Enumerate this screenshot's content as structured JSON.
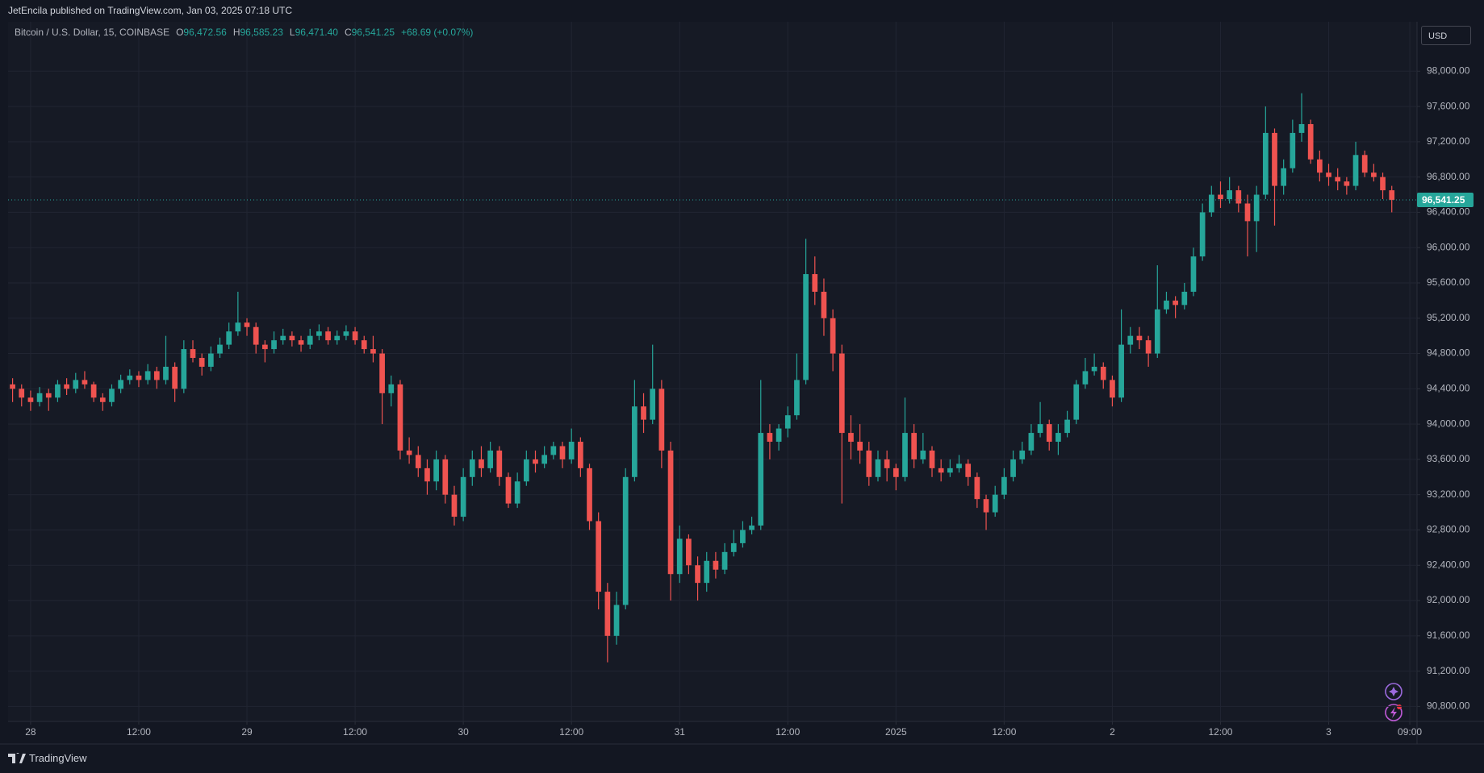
{
  "header": {
    "publisher": "JetEncila published on TradingView.com, Jan 03, 2025 07:18 UTC"
  },
  "footer": {
    "brand": "TradingView"
  },
  "legend": {
    "symbol": "Bitcoin / U.S. Dollar, 15, COINBASE",
    "fields": [
      {
        "key": "O",
        "value": "96,472.56"
      },
      {
        "key": "H",
        "value": "96,585.23"
      },
      {
        "key": "L",
        "value": "96,471.40"
      },
      {
        "key": "C",
        "value": "96,541.25"
      }
    ],
    "change": "+68.69 (+0.07%)"
  },
  "currency": "USD",
  "chart_data": {
    "type": "candlestick",
    "up_color": "#26a69a",
    "down_color": "#ef5350",
    "grid": true,
    "last_price": {
      "value": 96541.25,
      "label": "96,541.25"
    },
    "xlim": [
      -0.5,
      155.8
    ],
    "xticks": [
      {
        "value": 2,
        "label": "28"
      },
      {
        "value": 14,
        "label": "12:00"
      },
      {
        "value": 26,
        "label": "29"
      },
      {
        "value": 38,
        "label": "12:00"
      },
      {
        "value": 50,
        "label": "30"
      },
      {
        "value": 62,
        "label": "12:00"
      },
      {
        "value": 74,
        "label": "31"
      },
      {
        "value": 86,
        "label": "12:00"
      },
      {
        "value": 98,
        "label": "2025"
      },
      {
        "value": 110,
        "label": "12:00"
      },
      {
        "value": 122,
        "label": "2"
      },
      {
        "value": 134,
        "label": "12:00"
      },
      {
        "value": 146,
        "label": "3"
      },
      {
        "value": 155,
        "label": "09:00"
      }
    ],
    "ylim": [
      90630,
      98560
    ],
    "yticks": [
      {
        "value": 90800,
        "label": "90,800.00"
      },
      {
        "value": 91200,
        "label": "91,200.00"
      },
      {
        "value": 91600,
        "label": "91,600.00"
      },
      {
        "value": 92000,
        "label": "92,000.00"
      },
      {
        "value": 92400,
        "label": "92,400.00"
      },
      {
        "value": 92800,
        "label": "92,800.00"
      },
      {
        "value": 93200,
        "label": "93,200.00"
      },
      {
        "value": 93600,
        "label": "93,600.00"
      },
      {
        "value": 94000,
        "label": "94,000.00"
      },
      {
        "value": 94400,
        "label": "94,400.00"
      },
      {
        "value": 94800,
        "label": "94,800.00"
      },
      {
        "value": 95200,
        "label": "95,200.00"
      },
      {
        "value": 95600,
        "label": "95,600.00"
      },
      {
        "value": 96000,
        "label": "96,000.00"
      },
      {
        "value": 96400,
        "label": "96,400.00"
      },
      {
        "value": 96800,
        "label": "96,800.00"
      },
      {
        "value": 97200,
        "label": "97,200.00"
      },
      {
        "value": 97600,
        "label": "97,600.00"
      },
      {
        "value": 98000,
        "label": "98,000.00"
      }
    ],
    "ohlc": [
      [
        94450,
        94520,
        94250,
        94400
      ],
      [
        94400,
        94450,
        94200,
        94300
      ],
      [
        94300,
        94380,
        94150,
        94250
      ],
      [
        94250,
        94420,
        94200,
        94350
      ],
      [
        94350,
        94400,
        94150,
        94300
      ],
      [
        94300,
        94500,
        94250,
        94450
      ],
      [
        94450,
        94520,
        94330,
        94400
      ],
      [
        94400,
        94580,
        94350,
        94500
      ],
      [
        94500,
        94600,
        94400,
        94450
      ],
      [
        94450,
        94480,
        94250,
        94300
      ],
      [
        94300,
        94350,
        94150,
        94250
      ],
      [
        94250,
        94450,
        94200,
        94400
      ],
      [
        94400,
        94560,
        94350,
        94500
      ],
      [
        94500,
        94620,
        94450,
        94550
      ],
      [
        94550,
        94600,
        94420,
        94500
      ],
      [
        94500,
        94680,
        94450,
        94600
      ],
      [
        94600,
        94650,
        94400,
        94500
      ],
      [
        94500,
        95000,
        94450,
        94650
      ],
      [
        94650,
        94700,
        94250,
        94400
      ],
      [
        94400,
        94950,
        94350,
        94850
      ],
      [
        94850,
        94950,
        94700,
        94750
      ],
      [
        94750,
        94800,
        94550,
        94650
      ],
      [
        94650,
        94880,
        94600,
        94800
      ],
      [
        94800,
        94980,
        94750,
        94900
      ],
      [
        94900,
        95150,
        94850,
        95050
      ],
      [
        95050,
        95500,
        95000,
        95150
      ],
      [
        95150,
        95200,
        95000,
        95100
      ],
      [
        95100,
        95150,
        94800,
        94900
      ],
      [
        94900,
        94950,
        94700,
        94850
      ],
      [
        94850,
        95050,
        94800,
        94950
      ],
      [
        94950,
        95080,
        94900,
        95000
      ],
      [
        95000,
        95050,
        94880,
        94950
      ],
      [
        94950,
        95000,
        94820,
        94900
      ],
      [
        94900,
        95080,
        94850,
        95000
      ],
      [
        95000,
        95130,
        94950,
        95050
      ],
      [
        95050,
        95100,
        94900,
        94950
      ],
      [
        94950,
        95060,
        94900,
        95000
      ],
      [
        95000,
        95120,
        94950,
        95050
      ],
      [
        95050,
        95100,
        94900,
        94950
      ],
      [
        94950,
        95000,
        94800,
        94850
      ],
      [
        94850,
        95000,
        94700,
        94800
      ],
      [
        94800,
        94850,
        94000,
        94350
      ],
      [
        94350,
        94550,
        94200,
        94450
      ],
      [
        94450,
        94500,
        93600,
        93700
      ],
      [
        93700,
        93850,
        93550,
        93650
      ],
      [
        93650,
        93750,
        93400,
        93500
      ],
      [
        93500,
        93600,
        93200,
        93350
      ],
      [
        93350,
        93700,
        93250,
        93600
      ],
      [
        93600,
        93650,
        93100,
        93200
      ],
      [
        93200,
        93300,
        92850,
        92950
      ],
      [
        92950,
        93500,
        92900,
        93400
      ],
      [
        93400,
        93700,
        93300,
        93600
      ],
      [
        93600,
        93750,
        93400,
        93500
      ],
      [
        93500,
        93800,
        93450,
        93700
      ],
      [
        93700,
        93750,
        93300,
        93400
      ],
      [
        93400,
        93450,
        93050,
        93100
      ],
      [
        93100,
        93450,
        93050,
        93350
      ],
      [
        93350,
        93700,
        93300,
        93600
      ],
      [
        93600,
        93700,
        93450,
        93550
      ],
      [
        93550,
        93750,
        93500,
        93650
      ],
      [
        93650,
        93800,
        93600,
        93750
      ],
      [
        93750,
        93800,
        93500,
        93600
      ],
      [
        93600,
        93950,
        93550,
        93800
      ],
      [
        93800,
        93850,
        93400,
        93500
      ],
      [
        93500,
        93550,
        92800,
        92900
      ],
      [
        92900,
        93000,
        91900,
        92100
      ],
      [
        92100,
        92200,
        91300,
        91600
      ],
      [
        91600,
        92100,
        91500,
        91950
      ],
      [
        91950,
        93500,
        91900,
        93400
      ],
      [
        93400,
        94500,
        93350,
        94200
      ],
      [
        94200,
        94350,
        93900,
        94050
      ],
      [
        94050,
        94900,
        94000,
        94400
      ],
      [
        94400,
        94500,
        93500,
        93700
      ],
      [
        93700,
        93800,
        92000,
        92300
      ],
      [
        92300,
        92850,
        92200,
        92700
      ],
      [
        92700,
        92750,
        92300,
        92400
      ],
      [
        92400,
        92500,
        92000,
        92200
      ],
      [
        92200,
        92550,
        92100,
        92450
      ],
      [
        92450,
        92550,
        92250,
        92350
      ],
      [
        92350,
        92650,
        92300,
        92550
      ],
      [
        92550,
        92800,
        92500,
        92650
      ],
      [
        92650,
        92900,
        92600,
        92800
      ],
      [
        92800,
        92950,
        92750,
        92850
      ],
      [
        92850,
        94500,
        92800,
        93900
      ],
      [
        93900,
        94000,
        93600,
        93800
      ],
      [
        93800,
        94000,
        93700,
        93950
      ],
      [
        93950,
        94200,
        93850,
        94100
      ],
      [
        94100,
        94800,
        94050,
        94500
      ],
      [
        94500,
        96100,
        94450,
        95700
      ],
      [
        95700,
        95900,
        95350,
        95500
      ],
      [
        95500,
        95650,
        95000,
        95200
      ],
      [
        95200,
        95300,
        94600,
        94800
      ],
      [
        94800,
        94900,
        93100,
        93900
      ],
      [
        93900,
        94100,
        93600,
        93800
      ],
      [
        93800,
        94000,
        93550,
        93700
      ],
      [
        93700,
        93800,
        93300,
        93400
      ],
      [
        93400,
        93700,
        93350,
        93600
      ],
      [
        93600,
        93700,
        93350,
        93500
      ],
      [
        93500,
        93550,
        93250,
        93400
      ],
      [
        93400,
        94300,
        93350,
        93900
      ],
      [
        93900,
        94000,
        93500,
        93600
      ],
      [
        93600,
        93900,
        93550,
        93700
      ],
      [
        93700,
        93750,
        93400,
        93500
      ],
      [
        93500,
        93600,
        93350,
        93450
      ],
      [
        93450,
        93600,
        93400,
        93500
      ],
      [
        93500,
        93650,
        93450,
        93550
      ],
      [
        93550,
        93600,
        93300,
        93400
      ],
      [
        93400,
        93450,
        93050,
        93150
      ],
      [
        93150,
        93200,
        92800,
        93000
      ],
      [
        93000,
        93300,
        92950,
        93200
      ],
      [
        93200,
        93500,
        93150,
        93400
      ],
      [
        93400,
        93700,
        93350,
        93600
      ],
      [
        93600,
        93800,
        93550,
        93700
      ],
      [
        93700,
        94000,
        93650,
        93900
      ],
      [
        93900,
        94250,
        93850,
        94000
      ],
      [
        94000,
        94050,
        93700,
        93800
      ],
      [
        93800,
        94000,
        93650,
        93900
      ],
      [
        93900,
        94150,
        93850,
        94050
      ],
      [
        94050,
        94500,
        94000,
        94450
      ],
      [
        94450,
        94750,
        94400,
        94600
      ],
      [
        94600,
        94800,
        94550,
        94650
      ],
      [
        94650,
        94700,
        94400,
        94500
      ],
      [
        94500,
        94550,
        94200,
        94300
      ],
      [
        94300,
        95300,
        94250,
        94900
      ],
      [
        94900,
        95100,
        94800,
        95000
      ],
      [
        95000,
        95100,
        94850,
        94950
      ],
      [
        94950,
        95000,
        94650,
        94800
      ],
      [
        94800,
        95800,
        94750,
        95300
      ],
      [
        95300,
        95500,
        95250,
        95400
      ],
      [
        95400,
        95450,
        95200,
        95350
      ],
      [
        95350,
        95600,
        95300,
        95500
      ],
      [
        95500,
        96000,
        95450,
        95900
      ],
      [
        95900,
        96500,
        95850,
        96400
      ],
      [
        96400,
        96700,
        96350,
        96600
      ],
      [
        96600,
        96750,
        96450,
        96550
      ],
      [
        96550,
        96800,
        96500,
        96650
      ],
      [
        96650,
        96700,
        96400,
        96500
      ],
      [
        96500,
        96600,
        95900,
        96300
      ],
      [
        96300,
        96700,
        95950,
        96600
      ],
      [
        96600,
        97600,
        96550,
        97300
      ],
      [
        97300,
        97350,
        96250,
        96700
      ],
      [
        96700,
        97000,
        96600,
        96900
      ],
      [
        96900,
        97450,
        96850,
        97300
      ],
      [
        97300,
        97750,
        97200,
        97400
      ],
      [
        97400,
        97450,
        96950,
        97000
      ],
      [
        97000,
        97100,
        96750,
        96850
      ],
      [
        96850,
        96950,
        96700,
        96800
      ],
      [
        96800,
        96900,
        96650,
        96750
      ],
      [
        96750,
        96800,
        96600,
        96700
      ],
      [
        96700,
        97200,
        96650,
        97050
      ],
      [
        97050,
        97100,
        96800,
        96850
      ],
      [
        96850,
        96950,
        96750,
        96800
      ],
      [
        96800,
        96850,
        96550,
        96650
      ],
      [
        96650,
        96700,
        96400,
        96541.25
      ]
    ]
  }
}
